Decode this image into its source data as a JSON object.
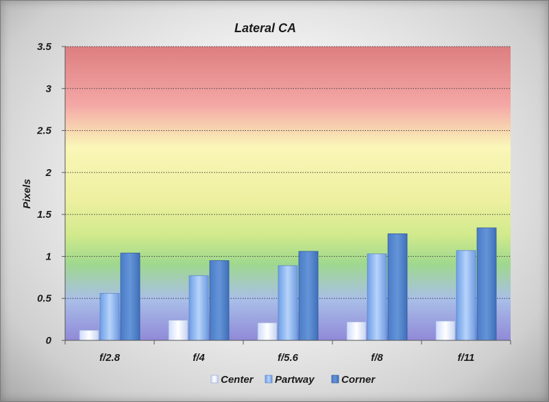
{
  "chart_data": {
    "type": "bar",
    "title": "Lateral CA",
    "xlabel": "",
    "ylabel": "Pixels",
    "ylim": [
      0,
      3.5
    ],
    "yticks": [
      "0",
      "0.5",
      "1",
      "1.5",
      "2",
      "2.5",
      "3",
      "3.5"
    ],
    "categories": [
      "f/2.8",
      "f/4",
      "f/5.6",
      "f/8",
      "f/11"
    ],
    "series": [
      {
        "name": "Center",
        "values": [
          0.12,
          0.24,
          0.21,
          0.22,
          0.23
        ]
      },
      {
        "name": "Partway",
        "values": [
          0.56,
          0.77,
          0.89,
          1.03,
          1.07
        ]
      },
      {
        "name": "Corner",
        "values": [
          1.04,
          0.95,
          1.06,
          1.27,
          1.34
        ]
      }
    ],
    "grid": true,
    "legend": "bottom",
    "colors": {
      "Center": "#eef3ff",
      "Partway": "#86b3f0",
      "Corner": "#4f82cc"
    }
  }
}
